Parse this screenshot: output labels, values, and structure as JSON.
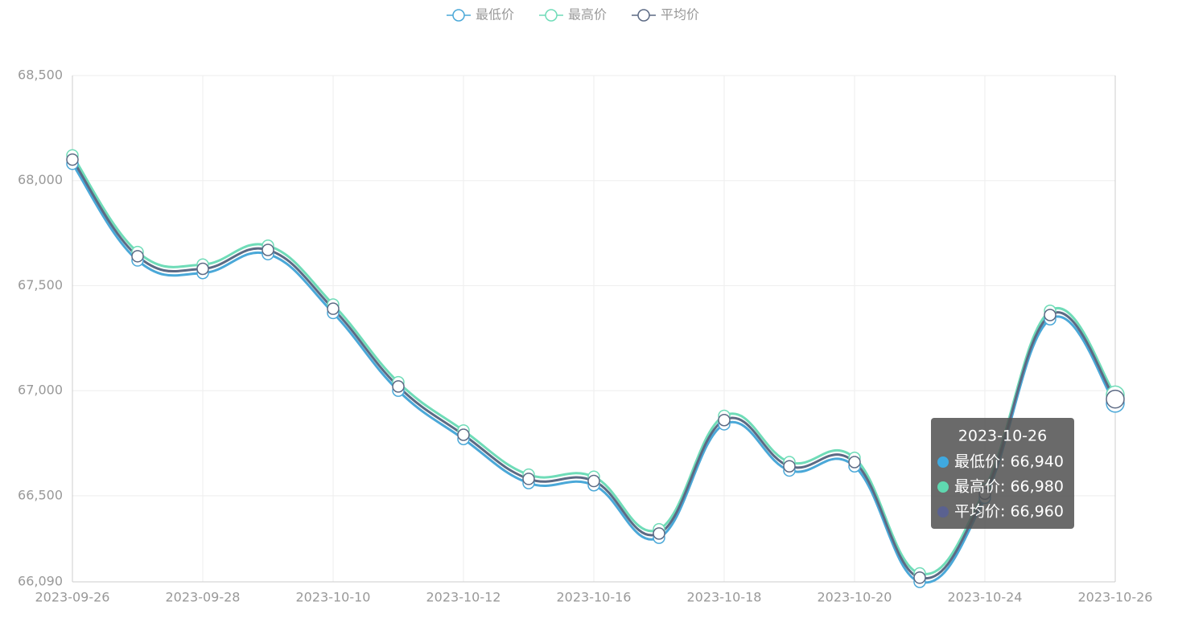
{
  "chart_data": {
    "type": "line",
    "smooth": true,
    "grid": true,
    "legend": "top",
    "categories": [
      "2023-09-26",
      null,
      "2023-09-28",
      null,
      "2023-10-10",
      null,
      "2023-10-12",
      null,
      "2023-10-16",
      null,
      "2023-10-18",
      null,
      "2023-10-20",
      null,
      "2023-10-24",
      null,
      "2023-10-26"
    ],
    "series": [
      {
        "name": "最低价",
        "color": "#4aa8d8",
        "values": [
          68080,
          67620,
          67560,
          67650,
          67370,
          67000,
          66770,
          66560,
          66550,
          66300,
          66840,
          66620,
          66640,
          66090,
          66490,
          67340,
          66940
        ]
      },
      {
        "name": "最高价",
        "color": "#6fdcb8",
        "values": [
          68120,
          67660,
          67600,
          67690,
          67410,
          67040,
          66810,
          66600,
          66590,
          66340,
          66880,
          66660,
          66680,
          66130,
          66530,
          67380,
          66980
        ]
      },
      {
        "name": "平均价",
        "color": "#5c6a84",
        "values": [
          68100,
          67640,
          67580,
          67670,
          67390,
          67020,
          66790,
          66580,
          66570,
          66320,
          66860,
          66640,
          66660,
          66110,
          66510,
          67360,
          66960
        ]
      }
    ],
    "ylim": [
      66090,
      68500
    ],
    "yticks": [
      {
        "value": 66090,
        "label": "66,090"
      },
      {
        "value": 66500,
        "label": "66,500"
      },
      {
        "value": 67000,
        "label": "67,000"
      },
      {
        "value": 67500,
        "label": "67,500"
      },
      {
        "value": 68000,
        "label": "68,000"
      },
      {
        "value": 68500,
        "label": "68,500"
      }
    ],
    "tooltip": {
      "title": "2023-10-26",
      "rows": [
        {
          "text": "最低价: 66,940",
          "color": "#3fa9e0"
        },
        {
          "text": "最高价: 66,980",
          "color": "#5fd8b0"
        },
        {
          "text": "平均价: 66,960",
          "color": "#5a6190"
        }
      ]
    }
  }
}
